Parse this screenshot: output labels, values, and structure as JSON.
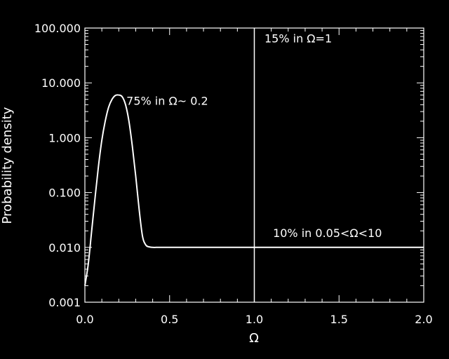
{
  "chart_data": {
    "type": "line",
    "xlabel": "Ω",
    "ylabel": "Probability density",
    "xlim": [
      0.0,
      2.0
    ],
    "ylim": [
      0.001,
      100
    ],
    "yscale": "log",
    "grid": false,
    "colors": {
      "background": "#000000",
      "foreground": "#ffffff"
    },
    "x_ticks": [
      {
        "value": 0.0,
        "label": "0.0"
      },
      {
        "value": 0.5,
        "label": "0.5"
      },
      {
        "value": 1.0,
        "label": "1.0"
      },
      {
        "value": 1.5,
        "label": "1.5"
      },
      {
        "value": 2.0,
        "label": "2.0"
      }
    ],
    "y_ticks": [
      {
        "value": 0.001,
        "label": "0.001"
      },
      {
        "value": 0.01,
        "label": "0.010"
      },
      {
        "value": 0.1,
        "label": "0.100"
      },
      {
        "value": 1,
        "label": "1.000"
      },
      {
        "value": 10,
        "label": "10.000"
      },
      {
        "value": 100,
        "label": "100.000"
      }
    ],
    "series": [
      {
        "x": [
          0.0,
          0.02,
          0.04,
          0.06,
          0.08,
          0.1,
          0.12,
          0.14,
          0.16,
          0.18,
          0.2,
          0.22,
          0.24,
          0.26,
          0.28,
          0.3,
          0.32,
          0.34,
          0.36,
          0.38,
          0.4,
          0.42,
          0.44,
          0.5,
          0.75,
          1.0,
          1.25,
          1.5,
          1.75,
          2.0
        ],
        "y": [
          0.002,
          0.005,
          0.02,
          0.08,
          0.3,
          0.9,
          2.0,
          3.6,
          5.0,
          5.9,
          6.0,
          5.6,
          4.0,
          2.0,
          0.7,
          0.2,
          0.05,
          0.016,
          0.011,
          0.0102,
          0.01,
          0.01,
          0.01,
          0.01,
          0.01,
          0.01,
          0.01,
          0.01,
          0.01,
          0.01
        ]
      }
    ],
    "vertical_lines": [
      {
        "x": 1.0
      }
    ],
    "annotations": [
      {
        "text": "75% in Ω~ 0.2",
        "x": 0.245,
        "y": 4.0
      },
      {
        "text": "15% in Ω=1",
        "x": 1.06,
        "y": 55
      },
      {
        "text": "10% in 0.05<Ω<10",
        "x": 1.11,
        "y": 0.0155
      }
    ]
  }
}
